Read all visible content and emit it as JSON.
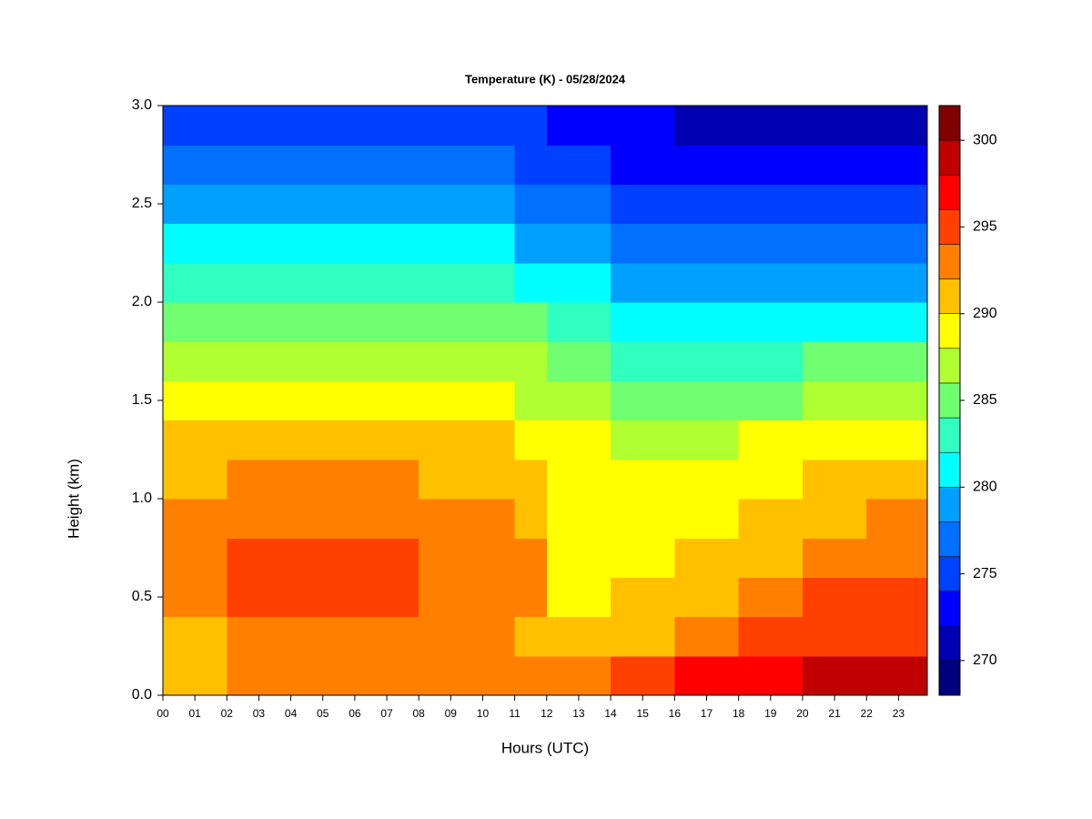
{
  "chart_data": {
    "type": "contour",
    "title": "Temperature (K) - 05/28/2024",
    "xlabel": "Hours (UTC)",
    "ylabel": "Height (km)",
    "x": [
      0,
      1,
      2,
      3,
      4,
      5,
      6,
      7,
      8,
      9,
      10,
      11,
      12,
      13,
      14,
      15,
      16,
      17,
      18,
      19,
      20,
      21,
      22,
      23
    ],
    "y": [
      0.1,
      0.3,
      0.5,
      0.7,
      0.9,
      1.1,
      1.3,
      1.5,
      1.7,
      1.9,
      2.1,
      2.3,
      2.5,
      2.7,
      2.9
    ],
    "z": [
      [
        291,
        291,
        293,
        293,
        293,
        291,
        291,
        289,
        287,
        285,
        283,
        281,
        279,
        277,
        275
      ],
      [
        291,
        291,
        293,
        293,
        293,
        291,
        291,
        289,
        287,
        285,
        283,
        281,
        279,
        277,
        275
      ],
      [
        293,
        293,
        295,
        295,
        293,
        293,
        291,
        289,
        287,
        285,
        283,
        281,
        279,
        277,
        275
      ],
      [
        293,
        293,
        295,
        295,
        293,
        293,
        291,
        289,
        287,
        285,
        283,
        281,
        279,
        277,
        275
      ],
      [
        293,
        293,
        295,
        295,
        293,
        293,
        291,
        289,
        287,
        285,
        283,
        281,
        279,
        277,
        275
      ],
      [
        293,
        293,
        295,
        295,
        293,
        293,
        291,
        289,
        287,
        285,
        283,
        281,
        279,
        277,
        275
      ],
      [
        293,
        293,
        295,
        295,
        293,
        293,
        291,
        289,
        287,
        285,
        283,
        281,
        279,
        277,
        275
      ],
      [
        293,
        293,
        295,
        295,
        293,
        293,
        291,
        289,
        287,
        285,
        283,
        281,
        279,
        277,
        275
      ],
      [
        293,
        293,
        293,
        293,
        293,
        291,
        291,
        289,
        287,
        285,
        283,
        281,
        279,
        277,
        275
      ],
      [
        293,
        293,
        293,
        293,
        293,
        291,
        291,
        289,
        287,
        285,
        283,
        281,
        279,
        277,
        275
      ],
      [
        293,
        293,
        293,
        293,
        293,
        291,
        291,
        289,
        287,
        285,
        283,
        281,
        279,
        277,
        275
      ],
      [
        293,
        291,
        293,
        293,
        291,
        291,
        289,
        287,
        287,
        285,
        281,
        279,
        277,
        275,
        275
      ],
      [
        293,
        291,
        289,
        289,
        289,
        289,
        289,
        287,
        285,
        283,
        281,
        279,
        277,
        275,
        273
      ],
      [
        293,
        291,
        289,
        289,
        289,
        289,
        289,
        287,
        285,
        283,
        281,
        279,
        277,
        275,
        273
      ],
      [
        295,
        291,
        291,
        289,
        289,
        289,
        287,
        285,
        283,
        281,
        279,
        277,
        275,
        273,
        273
      ],
      [
        295,
        291,
        291,
        289,
        289,
        289,
        287,
        285,
        283,
        281,
        279,
        277,
        275,
        273,
        273
      ],
      [
        297,
        293,
        291,
        291,
        289,
        289,
        287,
        285,
        283,
        281,
        279,
        277,
        275,
        273,
        271
      ],
      [
        297,
        293,
        291,
        291,
        289,
        289,
        287,
        285,
        283,
        281,
        279,
        277,
        275,
        273,
        271
      ],
      [
        297,
        295,
        293,
        291,
        291,
        289,
        289,
        285,
        283,
        281,
        279,
        277,
        275,
        273,
        271
      ],
      [
        297,
        295,
        293,
        291,
        291,
        289,
        289,
        285,
        283,
        281,
        279,
        277,
        275,
        273,
        271
      ],
      [
        299,
        295,
        295,
        293,
        291,
        291,
        289,
        287,
        285,
        281,
        279,
        277,
        275,
        273,
        271
      ],
      [
        299,
        295,
        295,
        293,
        291,
        291,
        289,
        287,
        285,
        281,
        279,
        277,
        275,
        273,
        271
      ],
      [
        299,
        295,
        295,
        293,
        293,
        291,
        289,
        287,
        285,
        281,
        279,
        277,
        275,
        273,
        271
      ],
      [
        299,
        295,
        295,
        293,
        293,
        291,
        289,
        287,
        285,
        281,
        279,
        277,
        275,
        273,
        271
      ]
    ],
    "xlim": [
      0,
      23.9
    ],
    "ylim": [
      0,
      3
    ],
    "xticks": [
      {
        "value": 0,
        "label": "00"
      },
      {
        "value": 1,
        "label": "01"
      },
      {
        "value": 2,
        "label": "02"
      },
      {
        "value": 3,
        "label": "03"
      },
      {
        "value": 4,
        "label": "04"
      },
      {
        "value": 5,
        "label": "05"
      },
      {
        "value": 6,
        "label": "06"
      },
      {
        "value": 7,
        "label": "07"
      },
      {
        "value": 8,
        "label": "08"
      },
      {
        "value": 9,
        "label": "09"
      },
      {
        "value": 10,
        "label": "10"
      },
      {
        "value": 11,
        "label": "11"
      },
      {
        "value": 12,
        "label": "12"
      },
      {
        "value": 13,
        "label": "13"
      },
      {
        "value": 14,
        "label": "14"
      },
      {
        "value": 15,
        "label": "15"
      },
      {
        "value": 16,
        "label": "16"
      },
      {
        "value": 17,
        "label": "17"
      },
      {
        "value": 18,
        "label": "18"
      },
      {
        "value": 19,
        "label": "19"
      },
      {
        "value": 20,
        "label": "20"
      },
      {
        "value": 21,
        "label": "21"
      },
      {
        "value": 22,
        "label": "22"
      },
      {
        "value": 23,
        "label": "23"
      }
    ],
    "yticks": [
      {
        "value": 0,
        "label": "0.0"
      },
      0.5,
      {
        "value": 1,
        "label": "1.0"
      },
      1.5,
      {
        "value": 2,
        "label": "2.0"
      },
      2.5,
      {
        "value": 3,
        "label": "3.0"
      }
    ],
    "levels": [
      268,
      270,
      272,
      274,
      276,
      278,
      280,
      282,
      284,
      286,
      288,
      290,
      292,
      294,
      296,
      298,
      300,
      302
    ],
    "colors": [
      "#00007f",
      "#0000b2",
      "#0000ff",
      "#0040ff",
      "#0070ff",
      "#00a0ff",
      "#00ffff",
      "#30ffc0",
      "#70ff70",
      "#b0ff30",
      "#ffff00",
      "#ffc000",
      "#ff8000",
      "#ff4000",
      "#ff0000",
      "#c00000",
      "#800000"
    ],
    "cbar_ticks": [
      270,
      275,
      280,
      285,
      290,
      295,
      300
    ]
  }
}
